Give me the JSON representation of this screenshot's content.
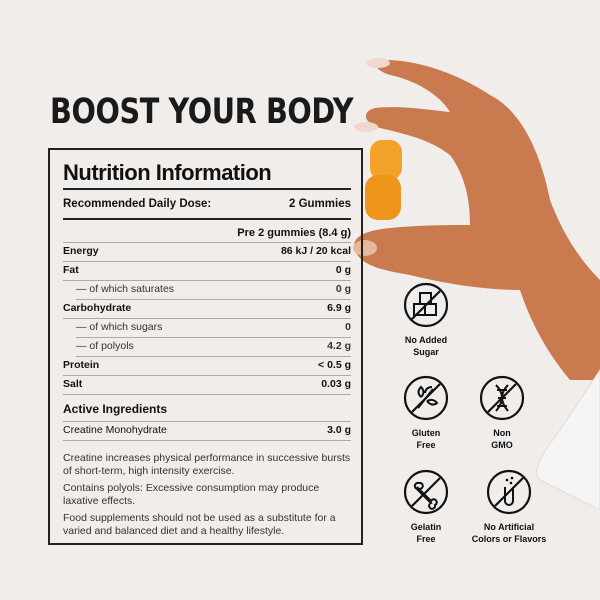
{
  "headline": "BOOST YOUR BODY",
  "panel": {
    "title": "Nutrition Information",
    "dose_label": "Recommended Daily Dose:",
    "dose_value": "2 Gummies",
    "per_serving": "Pre 2 gummies (8.4 g)",
    "rows": [
      {
        "label": "Energy",
        "value": "86 kJ / 20 kcal",
        "bold": true
      },
      {
        "label": "Fat",
        "value": "0 g",
        "bold": true
      },
      {
        "label": "— of which saturates",
        "value": "0 g",
        "bold": false
      },
      {
        "label": "Carbohydrate",
        "value": "6.9 g",
        "bold": true
      },
      {
        "label": "— of which sugars",
        "value": "0",
        "bold": false
      },
      {
        "label": "— of polyols",
        "value": "4.2 g",
        "bold": false
      },
      {
        "label": "Protein",
        "value": "< 0.5 g",
        "bold": true
      },
      {
        "label": "Salt",
        "value": "0.03 g",
        "bold": true
      }
    ],
    "active_title": "Active Ingredients",
    "active": [
      {
        "label": "Creatine Monohydrate",
        "value": "3.0 g"
      }
    ],
    "notes": [
      "Creatine increases physical performance in successive bursts of short-term, high intensity exercise.",
      "Contains polyols: Excessive consumption may produce laxative effects.",
      "Food supplements should not be used as a substitute for a varied and balanced diet and a healthy lifestyle."
    ]
  },
  "badges": [
    {
      "icon": "sugar-cubes-crossed-icon",
      "label1": "No Added",
      "label2": "Sugar"
    },
    {
      "icon": "wheat-crossed-icon",
      "label1": "Gluten",
      "label2": "Free"
    },
    {
      "icon": "dna-crossed-icon",
      "label1": "Non",
      "label2": "GMO"
    },
    {
      "icon": "bone-crossed-icon",
      "label1": "Gelatin",
      "label2": "Free"
    },
    {
      "icon": "test-tube-crossed-icon",
      "label1": "No Artificial",
      "label2": "Colors or Flavors"
    }
  ],
  "colors": {
    "background": "#f1edea",
    "text": "#111111",
    "gummy": "#f4a12a",
    "skin": "#c97a4e"
  }
}
